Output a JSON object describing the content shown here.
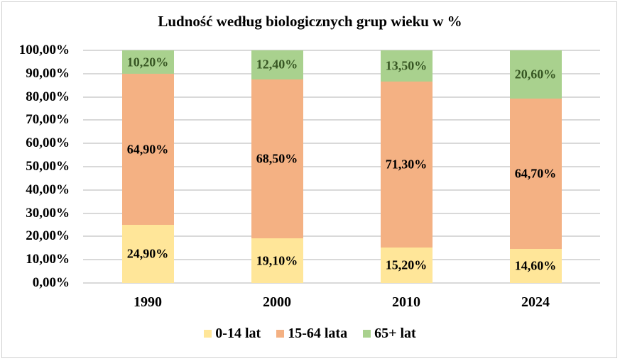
{
  "chart_data": {
    "type": "bar",
    "stacked": true,
    "title": "Ludność według biologicznych grup wieku w %",
    "xlabel": "",
    "ylabel": "",
    "categories": [
      "1990",
      "2000",
      "2010",
      "2024"
    ],
    "series": [
      {
        "name": "0-14 lat",
        "color": "#FFE699",
        "values": [
          24.9,
          19.1,
          15.2,
          14.6
        ],
        "labels": [
          "24,90%",
          "19,10%",
          "15,20%",
          "14,60%"
        ],
        "label_color": "#000000"
      },
      {
        "name": "15-64 lata",
        "color": "#F4B183",
        "values": [
          64.9,
          68.5,
          71.3,
          64.7
        ],
        "labels": [
          "64,90%",
          "68,50%",
          "71,30%",
          "64,70%"
        ],
        "label_color": "#000000"
      },
      {
        "name": "65+ lat",
        "color": "#A9D18E",
        "values": [
          10.2,
          12.4,
          13.5,
          20.6
        ],
        "labels": [
          "10,20%",
          "12,40%",
          "13,50%",
          "20,60%"
        ],
        "label_color": "#375623"
      }
    ],
    "ylim": [
      0,
      100
    ],
    "yticks": [
      "0,00%",
      "10,00%",
      "20,00%",
      "30,00%",
      "40,00%",
      "50,00%",
      "60,00%",
      "70,00%",
      "80,00%",
      "90,00%",
      "100,00%"
    ],
    "grid": true,
    "legend_position": "bottom"
  }
}
